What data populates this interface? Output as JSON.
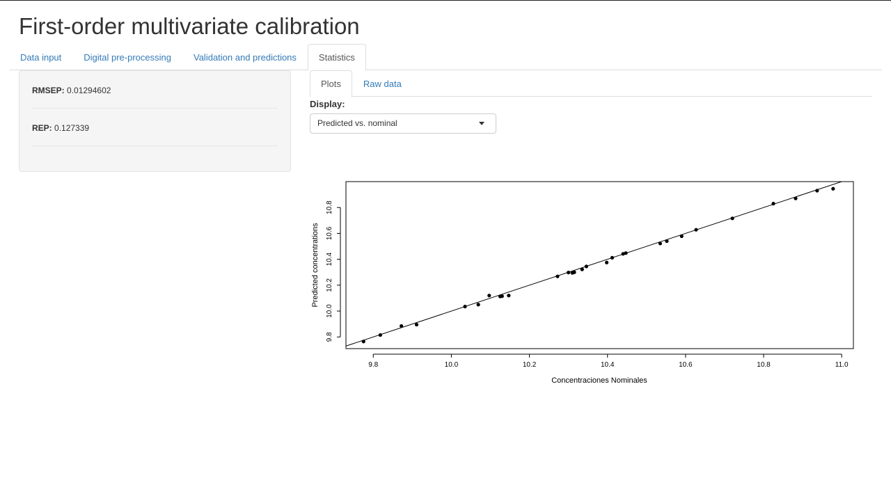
{
  "app": {
    "title": "First-order multivariate calibration"
  },
  "main_tabs": [
    {
      "label": "Data input",
      "active": false
    },
    {
      "label": "Digital pre-processing",
      "active": false
    },
    {
      "label": "Validation and predictions",
      "active": false
    },
    {
      "label": "Statistics",
      "active": true
    }
  ],
  "stats": {
    "rmsep": {
      "label": "RMSEP:",
      "value": "0.01294602"
    },
    "rep": {
      "label": "REP:",
      "value": "0.127339"
    }
  },
  "sub_tabs": [
    {
      "label": "Plots",
      "active": true
    },
    {
      "label": "Raw data",
      "active": false
    }
  ],
  "display": {
    "label": "Display:",
    "selected": "Predicted vs. nominal"
  },
  "chart_data": {
    "type": "scatter",
    "xlabel": "Concentraciones Nominales",
    "ylabel": "Predicted concentrations",
    "xlim": [
      9.73,
      11.03
    ],
    "ylim": [
      9.71,
      11.0
    ],
    "x_ticks": [
      "9.8",
      "10.0",
      "10.2",
      "10.4",
      "10.6",
      "10.8",
      "11.0"
    ],
    "y_ticks": [
      "9.8",
      "10.0",
      "10.2",
      "10.4",
      "10.6",
      "10.8"
    ],
    "x": [
      9.775,
      9.818,
      9.872,
      9.911,
      10.035,
      10.069,
      10.097,
      10.125,
      10.13,
      10.147,
      10.272,
      10.3,
      10.31,
      10.315,
      10.335,
      10.346,
      10.398,
      10.412,
      10.44,
      10.447,
      10.535,
      10.552,
      10.59,
      10.627,
      10.72,
      10.825,
      10.882,
      10.937,
      10.978
    ],
    "y": [
      9.765,
      9.815,
      9.885,
      9.895,
      10.035,
      10.05,
      10.12,
      10.113,
      10.115,
      10.12,
      10.268,
      10.298,
      10.295,
      10.3,
      10.322,
      10.345,
      10.375,
      10.412,
      10.442,
      10.448,
      10.522,
      10.54,
      10.578,
      10.628,
      10.716,
      10.83,
      10.87,
      10.93,
      10.945
    ],
    "reference_line": {
      "slope": 1,
      "intercept": 0
    },
    "grid": false,
    "color": "#000000"
  }
}
